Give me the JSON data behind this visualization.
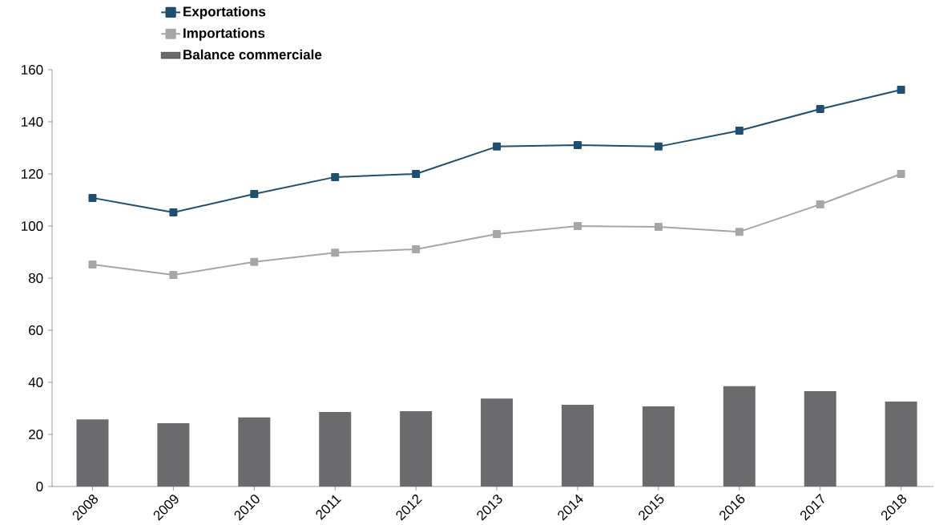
{
  "chart_data": {
    "type": "line",
    "categories": [
      "2008",
      "2009",
      "2010",
      "2011",
      "2012",
      "2013",
      "2014",
      "2015",
      "2016",
      "2017",
      "2018"
    ],
    "series": [
      {
        "name": "Exportations",
        "color": "#1f4e6e",
        "values": [
          110.8,
          105.2,
          112.3,
          118.8,
          120,
          130.5,
          131.1,
          130.5,
          136.6,
          144.9,
          152.3
        ]
      },
      {
        "name": "Importations",
        "color": "#a6a6a6",
        "values": [
          85.2,
          81.2,
          86.2,
          89.8,
          91.1,
          96.9,
          100,
          99.7,
          97.8,
          108.3,
          120
        ]
      },
      {
        "name": "Balance commerciale",
        "type": "bar",
        "color": "#6b6b6e",
        "values": [
          25.8,
          24.3,
          26.5,
          28.6,
          28.9,
          33.8,
          31.4,
          30.8,
          38.5,
          36.6,
          32.6
        ]
      }
    ],
    "ylim": [
      0,
      160
    ],
    "yticks": [
      0,
      20,
      40,
      60,
      80,
      100,
      120,
      140,
      160
    ],
    "grid": false,
    "legend": "top left",
    "marker": "square",
    "line_style": "solid"
  }
}
